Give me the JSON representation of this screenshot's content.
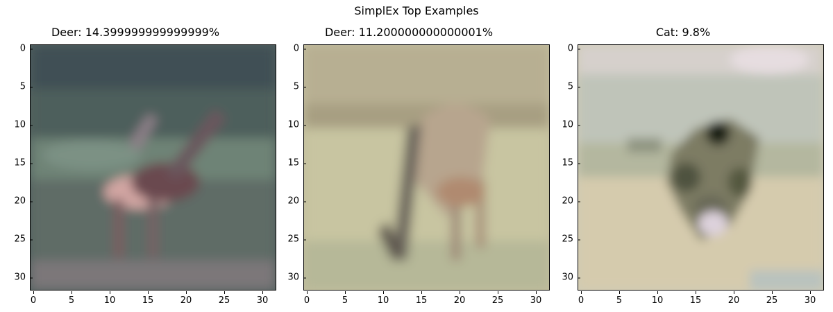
{
  "figure": {
    "title": "SimplEx Top Examples"
  },
  "axis_ticks": [
    "0",
    "5",
    "10",
    "15",
    "20",
    "25",
    "30"
  ],
  "panels": [
    {
      "title": "Deer: 14.399999999999999%",
      "image": {
        "subject": "deer-standing-in-forest",
        "palette": [
          "#44504e",
          "#5d6c6a",
          "#6f8178",
          "#d3a3a3",
          "#7a5a5e",
          "#5a4b52"
        ]
      }
    },
    {
      "title": "Deer: 11.200000000000001%",
      "image": {
        "subject": "deer-grazing-on-grass",
        "palette": [
          "#b9b296",
          "#c6c39e",
          "#a49a80",
          "#6c655a",
          "#8f7f6f",
          "#b9a88f"
        ]
      }
    },
    {
      "title": "Cat: 9.8%",
      "image": {
        "subject": "cat-on-sand",
        "palette": [
          "#c9c7bd",
          "#bdbd9f",
          "#6d6d58",
          "#33352a",
          "#ddd4d8",
          "#d8cfb6"
        ]
      }
    }
  ]
}
